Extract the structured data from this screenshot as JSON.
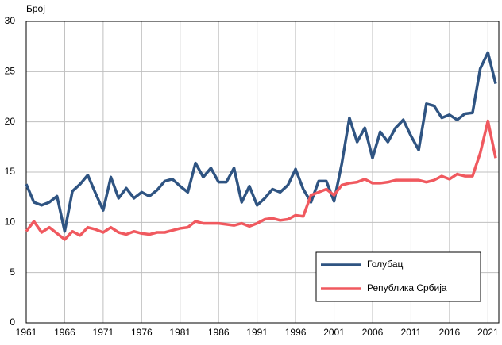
{
  "chart_data": {
    "type": "line",
    "y_label": "Број",
    "x": [
      1961,
      1962,
      1963,
      1964,
      1965,
      1966,
      1967,
      1968,
      1969,
      1970,
      1971,
      1972,
      1973,
      1974,
      1975,
      1976,
      1977,
      1978,
      1979,
      1980,
      1981,
      1982,
      1983,
      1984,
      1985,
      1986,
      1987,
      1988,
      1989,
      1990,
      1991,
      1992,
      1993,
      1994,
      1995,
      1996,
      1997,
      1998,
      1999,
      2000,
      2001,
      2002,
      2003,
      2004,
      2005,
      2006,
      2007,
      2008,
      2009,
      2010,
      2011,
      2012,
      2013,
      2014,
      2015,
      2016,
      2017,
      2018,
      2019,
      2020,
      2021,
      2022
    ],
    "series": [
      {
        "name": "Голубац",
        "color": "#2f5482",
        "values": [
          13.8,
          12.0,
          11.7,
          12.0,
          12.6,
          9.1,
          13.1,
          13.8,
          14.7,
          12.9,
          11.2,
          14.5,
          12.4,
          13.4,
          12.4,
          13.0,
          12.6,
          13.2,
          14.1,
          14.3,
          13.6,
          13.0,
          15.9,
          14.5,
          15.4,
          14.0,
          14.0,
          15.4,
          12.0,
          13.6,
          11.7,
          12.4,
          13.3,
          13.0,
          13.7,
          15.3,
          13.3,
          12.0,
          14.1,
          14.1,
          12.1,
          15.8,
          20.4,
          18.0,
          19.4,
          16.4,
          19.0,
          18.0,
          19.4,
          20.2,
          18.6,
          17.2,
          21.8,
          21.6,
          20.4,
          20.7,
          20.2,
          20.8,
          20.9,
          25.3,
          26.9,
          23.8
        ]
      },
      {
        "name": "Република Србија",
        "color": "#f0595f",
        "values": [
          9.1,
          10.1,
          9.0,
          9.5,
          8.9,
          8.3,
          9.1,
          8.7,
          9.5,
          9.3,
          9.0,
          9.5,
          9.0,
          8.8,
          9.1,
          8.9,
          8.8,
          9.0,
          9.0,
          9.2,
          9.4,
          9.5,
          10.1,
          9.9,
          9.9,
          9.9,
          9.8,
          9.7,
          9.9,
          9.6,
          9.9,
          10.3,
          10.4,
          10.2,
          10.3,
          10.7,
          10.6,
          12.7,
          13.0,
          13.3,
          12.7,
          13.7,
          13.9,
          14.0,
          14.3,
          13.9,
          13.9,
          14.0,
          14.2,
          14.2,
          14.2,
          14.2,
          14.0,
          14.2,
          14.6,
          14.3,
          14.8,
          14.6,
          14.6,
          16.9,
          20.1,
          16.4
        ]
      }
    ],
    "xlim": [
      1961,
      2022
    ],
    "xticks": [
      1961,
      1966,
      1971,
      1976,
      1981,
      1986,
      1991,
      1996,
      2001,
      2006,
      2011,
      2016,
      2021
    ],
    "ylim": [
      0,
      30
    ],
    "yticks": [
      0,
      5,
      10,
      15,
      20,
      25,
      30
    ],
    "grid": true,
    "legend": "lower-right"
  }
}
